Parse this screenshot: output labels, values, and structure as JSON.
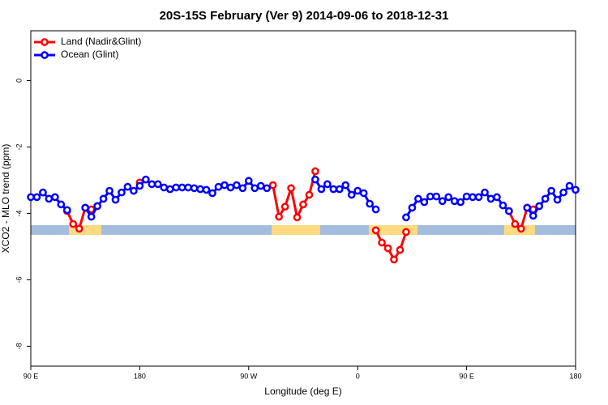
{
  "chart_data": {
    "type": "line",
    "title": "20S-15S February (Ver 9)   2014-09-06 to 2018-12-31",
    "x_label": "Longitude (deg E)",
    "y_label": "XCO2 - MLO trend (ppm)",
    "xlim": [
      90,
      540
    ],
    "ylim": [
      -8.6,
      1.5
    ],
    "xticks": [
      {
        "value": 90,
        "label": "90 E"
      },
      180,
      {
        "value": 270,
        "label": "90 W"
      },
      {
        "value": 360,
        "label": "0"
      },
      {
        "value": 450,
        "label": "90 E"
      },
      {
        "value": 540,
        "label": "180"
      }
    ],
    "yticks": [
      0,
      -2,
      -4,
      -6,
      -8
    ],
    "legend": "top-left",
    "band": {
      "value": -4.5,
      "color": "#a4bcde",
      "land_color": "#ffda7f",
      "land_ranges": [
        [
          121.5,
          148.3
        ],
        [
          288.9,
          329
        ],
        [
          369.2,
          409.4
        ],
        [
          481,
          506.5
        ]
      ]
    },
    "x": [
      90,
      95,
      100,
      105,
      110,
      115,
      120,
      125,
      130,
      135,
      140,
      145,
      150,
      155,
      160,
      165,
      170,
      175,
      180,
      185,
      190,
      195,
      200,
      205,
      210,
      215,
      220,
      225,
      230,
      235,
      240,
      245,
      250,
      255,
      260,
      265,
      270,
      275,
      280,
      285,
      290,
      295,
      300,
      305,
      310,
      315,
      320,
      325,
      330,
      335,
      340,
      345,
      350,
      355,
      360,
      365,
      370,
      375,
      380,
      385,
      390,
      395,
      400,
      405,
      410,
      415,
      420,
      425,
      430,
      435,
      440,
      445,
      450,
      455,
      460,
      465,
      470,
      475,
      480,
      485,
      490,
      495,
      500,
      505,
      510,
      515,
      520,
      525,
      530,
      535,
      540
    ],
    "series": [
      {
        "name": "Land (Nadir&Glint)",
        "color": "#ff0000",
        "values": [
          null,
          null,
          null,
          null,
          null,
          null,
          -3.93,
          -4.32,
          -4.46,
          -3.83,
          -3.88,
          -3.78,
          null,
          null,
          null,
          null,
          null,
          null,
          -3.07,
          null,
          null,
          null,
          null,
          null,
          null,
          null,
          null,
          null,
          null,
          null,
          null,
          null,
          null,
          null,
          null,
          null,
          null,
          null,
          null,
          null,
          -3.15,
          -4.1,
          -3.8,
          -3.24,
          -4.12,
          -3.73,
          -3.44,
          -2.73,
          null,
          null,
          null,
          null,
          null,
          null,
          null,
          null,
          null,
          -4.51,
          -4.88,
          -5.05,
          -5.39,
          -5.1,
          -4.56,
          null,
          null,
          null,
          null,
          null,
          null,
          null,
          null,
          null,
          null,
          null,
          null,
          null,
          null,
          null,
          null,
          -3.93,
          -4.32,
          -4.46,
          -3.83,
          -3.88,
          -3.78,
          null,
          null,
          null,
          null,
          null,
          null
        ]
      },
      {
        "name": "Ocean (Glint)",
        "color": "#0000ff",
        "values": [
          -3.51,
          -3.51,
          -3.37,
          -3.56,
          -3.51,
          -3.73,
          -3.9,
          null,
          null,
          -3.83,
          -4.1,
          -3.78,
          -3.56,
          -3.32,
          -3.59,
          -3.37,
          -3.2,
          -3.32,
          -3.17,
          -2.98,
          -3.12,
          -3.12,
          -3.22,
          -3.27,
          -3.22,
          -3.22,
          -3.22,
          -3.24,
          -3.27,
          -3.29,
          -3.39,
          -3.2,
          -3.15,
          -3.22,
          -3.15,
          -3.24,
          -3.02,
          -3.24,
          -3.17,
          -3.24,
          null,
          null,
          null,
          null,
          null,
          null,
          null,
          -2.98,
          -3.27,
          -3.12,
          -3.27,
          -3.27,
          -3.15,
          -3.44,
          -3.32,
          -3.39,
          -3.71,
          -3.88,
          null,
          null,
          null,
          null,
          -4.12,
          -3.83,
          -3.56,
          -3.66,
          -3.49,
          -3.49,
          -3.63,
          -3.51,
          -3.63,
          -3.66,
          -3.49,
          -3.51,
          -3.51,
          -3.37,
          -3.56,
          -3.51,
          -3.76,
          -3.93,
          null,
          null,
          -3.83,
          -4.07,
          -3.78,
          -3.56,
          -3.32,
          -3.59,
          -3.37,
          -3.17,
          -3.29
        ]
      }
    ]
  }
}
